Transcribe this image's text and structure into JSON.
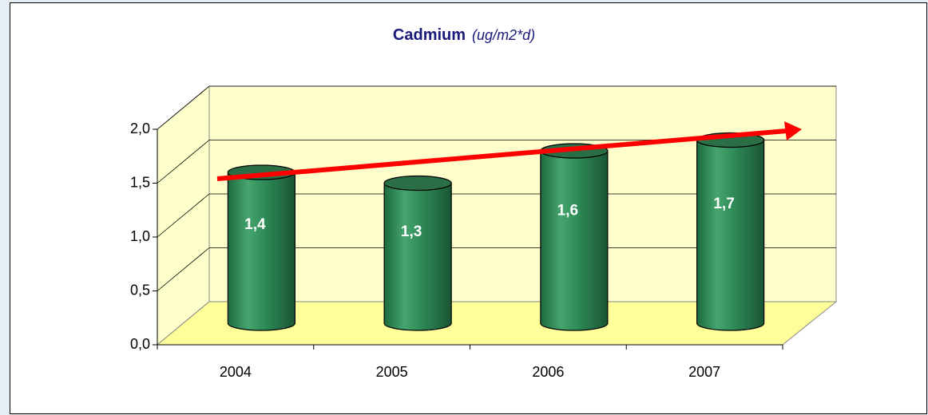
{
  "chart_data": {
    "type": "bar3d",
    "title": "Cadmium",
    "subtitle": "(ug/m2*d)",
    "categories": [
      "2004",
      "2005",
      "2006",
      "2007"
    ],
    "values": [
      1.4,
      1.3,
      1.6,
      1.7
    ],
    "value_labels": [
      "1,4",
      "1,3",
      "1,6",
      "1,7"
    ],
    "color": "#2e8b57",
    "ylim": [
      0,
      2.0
    ],
    "yticks": [
      {
        "value": 0,
        "label": "0,0"
      },
      {
        "value": 0.5,
        "label": "0,5"
      },
      {
        "value": 1.0,
        "label": "1,0"
      },
      {
        "value": 1.5,
        "label": "1,5"
      },
      {
        "value": 2.0,
        "label": "2,0"
      }
    ],
    "grid": true
  }
}
